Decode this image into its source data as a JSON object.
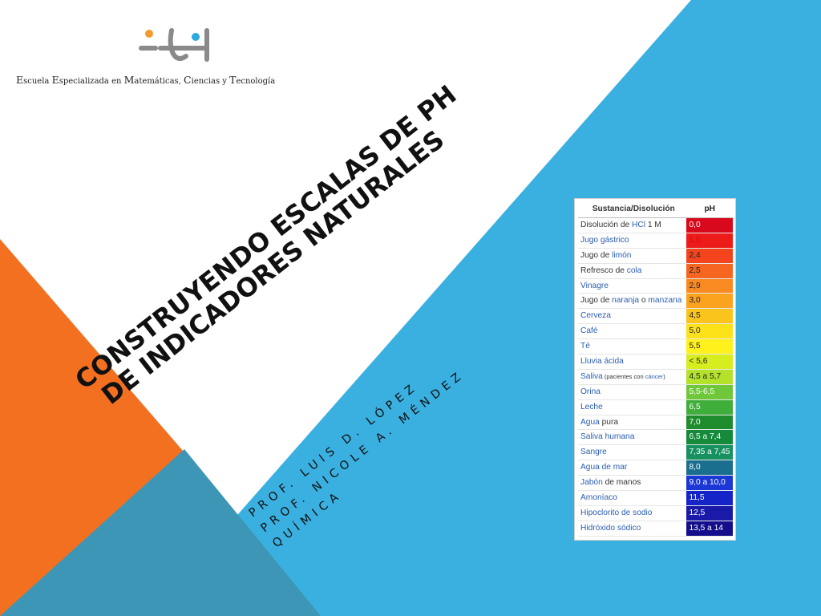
{
  "logo": {
    "text_parts": [
      {
        "t": "E",
        "s": false
      },
      {
        "t": "scuela ",
        "s": true
      },
      {
        "t": "E",
        "s": false
      },
      {
        "t": "specializada en ",
        "s": true
      },
      {
        "t": "M",
        "s": false
      },
      {
        "t": "atemáticas, ",
        "s": true
      },
      {
        "t": "C",
        "s": false
      },
      {
        "t": "iencias y ",
        "s": true
      },
      {
        "t": "T",
        "s": false
      },
      {
        "t": "ecnología",
        "s": true
      }
    ],
    "colors": {
      "gray": "#8a8a8a",
      "orange": "#f29a2e",
      "blue": "#2aa8e0"
    }
  },
  "title": {
    "line1": "CONSTRUYENDO ESCALAS DE PH",
    "line2": "DE INDICADORES NATURALES"
  },
  "authors": {
    "line1": "PROF. LUIS D. LÓPEZ",
    "line2": "PROF. NICOLE A. MÉNDEZ",
    "line3": "QUÍMICA"
  },
  "background": {
    "blue": "#3ab0e0",
    "orange": "#f37021",
    "teal": "#3d96b5"
  },
  "ph_table": {
    "header_substance": "Sustancia/Disolución",
    "header_ph": "pH",
    "rows": [
      {
        "parts": [
          {
            "t": "Disolución de ",
            "c": "n"
          },
          {
            "t": "HCl",
            "c": "h"
          },
          {
            "t": " 1 M",
            "c": "n"
          }
        ],
        "ph": "0,0",
        "bg": "#d9081c",
        "fg": "#ffffff"
      },
      {
        "parts": [
          {
            "t": "Jugo gástrico",
            "c": "h"
          }
        ],
        "ph": "1,5",
        "bg": "#ee1b1b",
        "fg": "#d9081c"
      },
      {
        "parts": [
          {
            "t": "Jugo de ",
            "c": "n"
          },
          {
            "t": "limón",
            "c": "h"
          }
        ],
        "ph": "2,4",
        "bg": "#f3441e",
        "fg": "#222222"
      },
      {
        "parts": [
          {
            "t": "Refresco de ",
            "c": "n"
          },
          {
            "t": "cola",
            "c": "h"
          }
        ],
        "ph": "2,5",
        "bg": "#f66620",
        "fg": "#222222"
      },
      {
        "parts": [
          {
            "t": "Vinagre",
            "c": "h"
          }
        ],
        "ph": "2,9",
        "bg": "#f98a22",
        "fg": "#222222"
      },
      {
        "parts": [
          {
            "t": "Jugo de ",
            "c": "n"
          },
          {
            "t": "naranja",
            "c": "h"
          },
          {
            "t": " o ",
            "c": "n"
          },
          {
            "t": "manzana",
            "c": "h"
          }
        ],
        "ph": "3,0",
        "bg": "#fba21f",
        "fg": "#222222"
      },
      {
        "parts": [
          {
            "t": "Cerveza",
            "c": "h"
          }
        ],
        "ph": "4,5",
        "bg": "#fbc41c",
        "fg": "#222222"
      },
      {
        "parts": [
          {
            "t": "Café",
            "c": "h"
          }
        ],
        "ph": "5,0",
        "bg": "#fde21a",
        "fg": "#222222"
      },
      {
        "parts": [
          {
            "t": "Té",
            "c": "h"
          }
        ],
        "ph": "5,5",
        "bg": "#fff21c",
        "fg": "#222222"
      },
      {
        "parts": [
          {
            "t": "Lluvia ácida",
            "c": "h"
          }
        ],
        "ph": "< 5,6",
        "bg": "#d7ee1e",
        "fg": "#222222"
      },
      {
        "parts": [
          {
            "t": "Saliva",
            "c": "h"
          },
          {
            "t": " (pacientes con ",
            "c": "s"
          },
          {
            "t": "cáncer",
            "c": "hs"
          },
          {
            "t": ")",
            "c": "s"
          }
        ],
        "ph": "4,5 a 5,7",
        "bg": "#b4e22a",
        "fg": "#222222"
      },
      {
        "parts": [
          {
            "t": "Orina",
            "c": "h"
          }
        ],
        "ph": "5,5-6,5",
        "bg": "#6fc73a",
        "fg": "#ffffff"
      },
      {
        "parts": [
          {
            "t": "Leche",
            "c": "h"
          }
        ],
        "ph": "6,5",
        "bg": "#3fae3b",
        "fg": "#ffffff"
      },
      {
        "parts": [
          {
            "t": "Agua",
            "c": "h"
          },
          {
            "t": " pura",
            "c": "n"
          }
        ],
        "ph": "7,0",
        "bg": "#1e8c2d",
        "fg": "#ffffff"
      },
      {
        "parts": [
          {
            "t": "Saliva humana",
            "c": "h"
          }
        ],
        "ph": "6,5 a 7,4",
        "bg": "#148a3a",
        "fg": "#ffffff"
      },
      {
        "parts": [
          {
            "t": "Sangre",
            "c": "h"
          }
        ],
        "ph": "7,35 a 7,45",
        "bg": "#16915f",
        "fg": "#ffffff"
      },
      {
        "parts": [
          {
            "t": "Agua de mar",
            "c": "h"
          }
        ],
        "ph": "8,0",
        "bg": "#1a6f8f",
        "fg": "#ffffff"
      },
      {
        "parts": [
          {
            "t": "Jabón",
            "c": "h"
          },
          {
            "t": " de manos",
            "c": "n"
          }
        ],
        "ph": "9,0 a 10,0",
        "bg": "#1b37d6",
        "fg": "#ffffff"
      },
      {
        "parts": [
          {
            "t": "Amoníaco",
            "c": "h"
          }
        ],
        "ph": "11,5",
        "bg": "#1524c8",
        "fg": "#ffffff"
      },
      {
        "parts": [
          {
            "t": "Hipoclorito de sodio",
            "c": "h"
          }
        ],
        "ph": "12,5",
        "bg": "#1a1aa8",
        "fg": "#ffffff"
      },
      {
        "parts": [
          {
            "t": "Hidróxido sódico",
            "c": "h"
          }
        ],
        "ph": "13,5 a 14",
        "bg": "#140e8c",
        "fg": "#ffffff"
      }
    ]
  }
}
